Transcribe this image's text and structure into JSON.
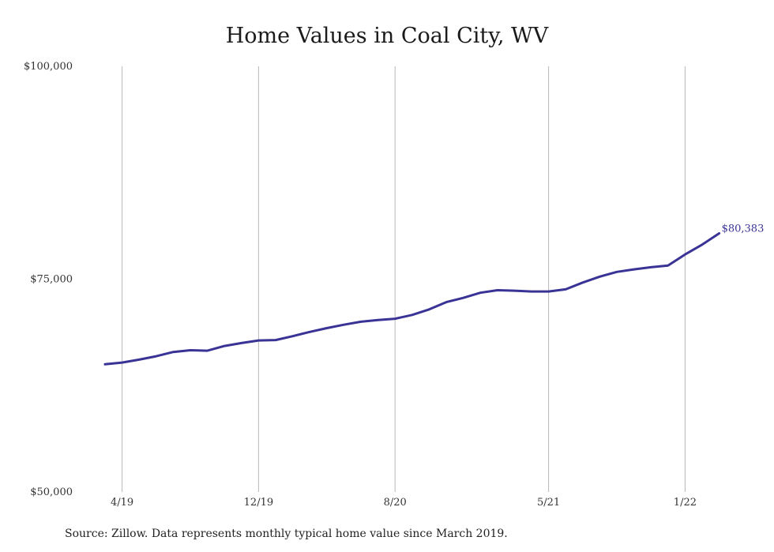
{
  "chart_data": {
    "type": "line",
    "title": "Home Values in Coal City, WV",
    "xlabel": "",
    "ylabel": "",
    "ylim": [
      50000,
      100000
    ],
    "y_ticks": [
      "$100,000",
      "$75,000",
      "$50,000"
    ],
    "y_tick_values": [
      100000,
      75000,
      50000
    ],
    "x_ticks": [
      "4/19",
      "12/19",
      "8/20",
      "5/21",
      "1/22"
    ],
    "grid": "vertical",
    "line_color": "#3a3396",
    "end_label": "$80,383",
    "series": [
      {
        "x": [
          "3/19",
          "4/19",
          "5/19",
          "6/19",
          "7/19",
          "8/19",
          "9/19",
          "10/19",
          "11/19",
          "12/19",
          "1/20",
          "2/20",
          "3/20",
          "4/20",
          "5/20",
          "6/20",
          "7/20",
          "8/20",
          "9/20",
          "10/20",
          "11/20",
          "12/20",
          "1/21",
          "2/21",
          "3/21",
          "4/21",
          "5/21",
          "6/21",
          "7/21",
          "8/21",
          "9/21",
          "10/21",
          "11/21",
          "12/21",
          "1/22",
          "2/22",
          "3/22"
        ],
        "values": [
          65000,
          65200,
          65550,
          65950,
          66450,
          66650,
          66600,
          67150,
          67500,
          67800,
          67850,
          68300,
          68800,
          69250,
          69650,
          70000,
          70200,
          70350,
          70800,
          71450,
          72300,
          72800,
          73400,
          73700,
          73650,
          73550,
          73550,
          73800,
          74600,
          75300,
          75850,
          76150,
          76400,
          76600,
          77900,
          79050,
          80383
        ]
      }
    ]
  },
  "source_note": "Source: Zillow. Data represents monthly typical home value since March 2019."
}
